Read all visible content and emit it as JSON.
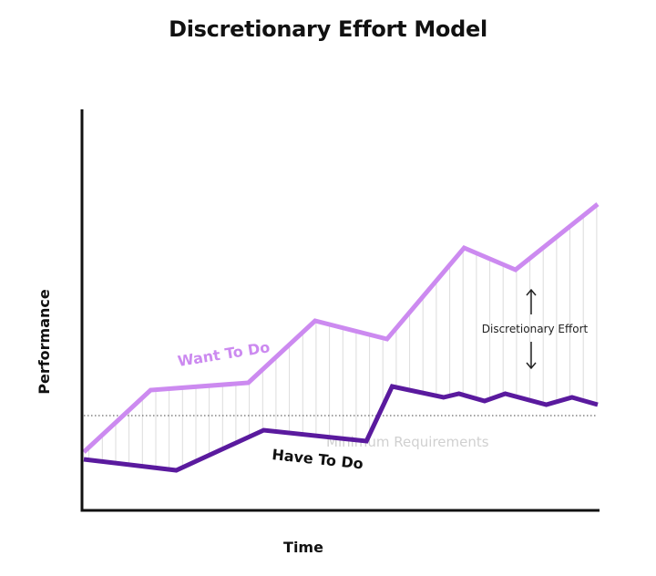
{
  "chart_data": {
    "type": "line",
    "title": "Discretionary Effort Model",
    "xlabel": "Time",
    "ylabel": "Performance",
    "x": [
      0,
      14,
      32,
      45,
      59,
      73,
      100
    ],
    "series": [
      {
        "name": "Want To Do",
        "color": "#cc8af0",
        "points": [
          [
            0,
            16
          ],
          [
            13,
            33
          ],
          [
            32,
            35
          ],
          [
            45,
            52
          ],
          [
            59,
            47
          ],
          [
            74,
            72
          ],
          [
            84,
            66
          ],
          [
            100,
            84
          ]
        ]
      },
      {
        "name": "Have To Do",
        "color": "#5a1a9e",
        "points": [
          [
            0,
            14
          ],
          [
            18,
            11
          ],
          [
            35,
            22
          ],
          [
            55,
            19
          ],
          [
            60,
            34
          ],
          [
            70,
            31
          ],
          [
            73,
            32
          ],
          [
            78,
            30
          ],
          [
            82,
            32
          ],
          [
            90,
            29
          ],
          [
            95,
            31
          ],
          [
            100,
            29
          ]
        ]
      }
    ],
    "reference_line": {
      "label": "Minimum Requirements",
      "y": 26,
      "style": "dotted",
      "color": "#d4d4d4"
    },
    "annotation": {
      "label": "Discretionary Effort",
      "arrows": "up-down"
    },
    "ylim": [
      0,
      100
    ],
    "xlim": [
      0,
      100
    ],
    "grid": false
  }
}
